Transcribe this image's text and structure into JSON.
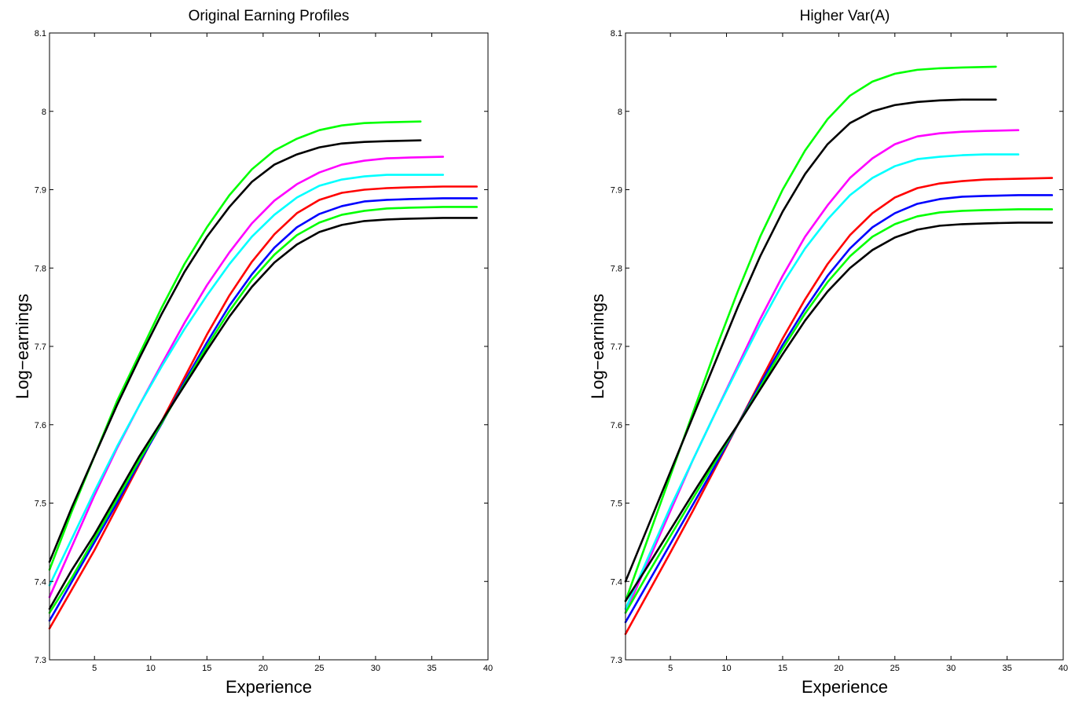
{
  "chart_data": [
    {
      "type": "line",
      "title": "Original Earning Profiles",
      "xlabel": "Experience",
      "ylabel": "Log−earnings",
      "xlim": [
        1,
        40
      ],
      "ylim": [
        7.3,
        8.1
      ],
      "xticks": [
        5,
        10,
        15,
        20,
        25,
        30,
        35,
        40
      ],
      "xtick_labels": [
        "5",
        "10",
        "15",
        "20",
        "25",
        "30",
        "35",
        "40"
      ],
      "yticks": [
        7.3,
        7.4,
        7.5,
        7.6,
        7.7,
        7.8,
        7.9,
        8.0,
        8.1
      ],
      "ytick_labels": [
        "7.3",
        "7.4",
        "7.5",
        "7.6",
        "7.7",
        "7.8",
        "7.9",
        "8",
        "8.1"
      ],
      "grid": false,
      "series": [
        {
          "color": "#00ff00",
          "x": [
            1,
            3,
            5,
            7,
            9,
            11,
            13,
            15,
            17,
            19,
            21,
            23,
            25,
            27,
            29,
            31,
            34
          ],
          "y": [
            7.415,
            7.49,
            7.56,
            7.63,
            7.69,
            7.75,
            7.805,
            7.852,
            7.893,
            7.926,
            7.95,
            7.965,
            7.976,
            7.982,
            7.985,
            7.986,
            7.987
          ]
        },
        {
          "color": "#000000",
          "x": [
            1,
            3,
            5,
            7,
            9,
            11,
            13,
            15,
            17,
            19,
            21,
            23,
            25,
            27,
            29,
            31,
            34
          ],
          "y": [
            7.425,
            7.495,
            7.56,
            7.625,
            7.685,
            7.742,
            7.795,
            7.84,
            7.878,
            7.91,
            7.932,
            7.945,
            7.954,
            7.959,
            7.961,
            7.962,
            7.963
          ]
        },
        {
          "color": "#ff00ff",
          "x": [
            1,
            3,
            5,
            7,
            9,
            11,
            13,
            15,
            17,
            19,
            21,
            23,
            25,
            27,
            29,
            31,
            33,
            36
          ],
          "y": [
            7.38,
            7.445,
            7.51,
            7.57,
            7.625,
            7.678,
            7.73,
            7.778,
            7.82,
            7.857,
            7.886,
            7.907,
            7.922,
            7.932,
            7.937,
            7.94,
            7.941,
            7.942
          ]
        },
        {
          "color": "#00ffff",
          "x": [
            1,
            3,
            5,
            7,
            9,
            11,
            13,
            15,
            17,
            19,
            21,
            23,
            25,
            27,
            29,
            31,
            33,
            36
          ],
          "y": [
            7.395,
            7.455,
            7.515,
            7.572,
            7.625,
            7.675,
            7.722,
            7.765,
            7.805,
            7.84,
            7.868,
            7.89,
            7.905,
            7.913,
            7.917,
            7.919,
            7.919,
            7.919
          ]
        },
        {
          "color": "#ff0000",
          "x": [
            1,
            3,
            5,
            7,
            9,
            11,
            13,
            15,
            17,
            19,
            21,
            23,
            25,
            27,
            29,
            31,
            33,
            36,
            39
          ],
          "y": [
            7.34,
            7.39,
            7.44,
            7.495,
            7.55,
            7.605,
            7.66,
            7.715,
            7.765,
            7.808,
            7.843,
            7.87,
            7.887,
            7.896,
            7.9,
            7.902,
            7.903,
            7.904,
            7.904
          ]
        },
        {
          "color": "#0000ff",
          "x": [
            1,
            3,
            5,
            7,
            9,
            11,
            13,
            15,
            17,
            19,
            21,
            23,
            25,
            27,
            29,
            31,
            33,
            36,
            39
          ],
          "y": [
            7.35,
            7.4,
            7.45,
            7.5,
            7.552,
            7.602,
            7.655,
            7.705,
            7.752,
            7.792,
            7.826,
            7.852,
            7.869,
            7.879,
            7.885,
            7.887,
            7.888,
            7.889,
            7.889
          ]
        },
        {
          "color": "#00ff00",
          "x": [
            1,
            3,
            5,
            7,
            9,
            11,
            13,
            15,
            17,
            19,
            21,
            23,
            25,
            27,
            29,
            31,
            33,
            36,
            39
          ],
          "y": [
            7.36,
            7.405,
            7.455,
            7.505,
            7.555,
            7.603,
            7.652,
            7.7,
            7.745,
            7.785,
            7.817,
            7.842,
            7.858,
            7.868,
            7.873,
            7.876,
            7.877,
            7.878,
            7.878
          ]
        },
        {
          "color": "#000000",
          "x": [
            1,
            3,
            5,
            7,
            9,
            11,
            13,
            15,
            17,
            19,
            21,
            23,
            25,
            27,
            29,
            31,
            33,
            36,
            39
          ],
          "y": [
            7.365,
            7.415,
            7.46,
            7.51,
            7.56,
            7.605,
            7.65,
            7.695,
            7.738,
            7.776,
            7.807,
            7.83,
            7.846,
            7.855,
            7.86,
            7.862,
            7.863,
            7.864,
            7.864
          ]
        }
      ]
    },
    {
      "type": "line",
      "title": "Higher Var(A)",
      "xlabel": "Experience",
      "ylabel": "Log−earnings",
      "xlim": [
        1,
        40
      ],
      "ylim": [
        7.3,
        8.1
      ],
      "xticks": [
        5,
        10,
        15,
        20,
        25,
        30,
        35,
        40
      ],
      "xtick_labels": [
        "5",
        "10",
        "15",
        "20",
        "25",
        "30",
        "35",
        "40"
      ],
      "yticks": [
        7.3,
        7.4,
        7.5,
        7.6,
        7.7,
        7.8,
        7.9,
        8.0,
        8.1
      ],
      "ytick_labels": [
        "7.3",
        "7.4",
        "7.5",
        "7.6",
        "7.7",
        "7.8",
        "7.9",
        "8",
        "8.1"
      ],
      "grid": false,
      "series": [
        {
          "color": "#00ff00",
          "x": [
            1,
            3,
            5,
            7,
            9,
            11,
            13,
            15,
            17,
            19,
            21,
            23,
            25,
            27,
            29,
            31,
            34
          ],
          "y": [
            7.375,
            7.455,
            7.535,
            7.615,
            7.695,
            7.77,
            7.84,
            7.9,
            7.95,
            7.99,
            8.02,
            8.038,
            8.048,
            8.053,
            8.055,
            8.056,
            8.057
          ]
        },
        {
          "color": "#000000",
          "x": [
            1,
            3,
            5,
            7,
            9,
            11,
            13,
            15,
            17,
            19,
            21,
            23,
            25,
            27,
            29,
            31,
            34
          ],
          "y": [
            7.4,
            7.47,
            7.54,
            7.61,
            7.68,
            7.75,
            7.815,
            7.872,
            7.92,
            7.958,
            7.985,
            8.0,
            8.008,
            8.012,
            8.014,
            8.015,
            8.015
          ]
        },
        {
          "color": "#ff00ff",
          "x": [
            1,
            3,
            5,
            7,
            9,
            11,
            13,
            15,
            17,
            19,
            21,
            23,
            25,
            27,
            29,
            31,
            33,
            36
          ],
          "y": [
            7.36,
            7.425,
            7.49,
            7.555,
            7.615,
            7.675,
            7.735,
            7.79,
            7.84,
            7.88,
            7.915,
            7.94,
            7.958,
            7.968,
            7.972,
            7.974,
            7.975,
            7.976
          ]
        },
        {
          "color": "#00ffff",
          "x": [
            1,
            3,
            5,
            7,
            9,
            11,
            13,
            15,
            17,
            19,
            21,
            23,
            25,
            27,
            29,
            31,
            33,
            36
          ],
          "y": [
            7.365,
            7.43,
            7.495,
            7.555,
            7.615,
            7.672,
            7.728,
            7.78,
            7.825,
            7.862,
            7.893,
            7.915,
            7.93,
            7.939,
            7.942,
            7.944,
            7.945,
            7.945
          ]
        },
        {
          "color": "#ff0000",
          "x": [
            1,
            3,
            5,
            7,
            9,
            11,
            13,
            15,
            17,
            19,
            21,
            23,
            25,
            27,
            29,
            31,
            33,
            36,
            39
          ],
          "y": [
            7.333,
            7.385,
            7.437,
            7.49,
            7.545,
            7.6,
            7.655,
            7.71,
            7.76,
            7.805,
            7.842,
            7.87,
            7.89,
            7.902,
            7.908,
            7.911,
            7.913,
            7.914,
            7.915
          ]
        },
        {
          "color": "#0000ff",
          "x": [
            1,
            3,
            5,
            7,
            9,
            11,
            13,
            15,
            17,
            19,
            21,
            23,
            25,
            27,
            29,
            31,
            33,
            36,
            39
          ],
          "y": [
            7.348,
            7.398,
            7.448,
            7.498,
            7.548,
            7.6,
            7.652,
            7.702,
            7.748,
            7.79,
            7.825,
            7.852,
            7.87,
            7.882,
            7.888,
            7.891,
            7.892,
            7.893,
            7.893
          ]
        },
        {
          "color": "#00ff00",
          "x": [
            1,
            3,
            5,
            7,
            9,
            11,
            13,
            15,
            17,
            19,
            21,
            23,
            25,
            27,
            29,
            31,
            33,
            36,
            39
          ],
          "y": [
            7.36,
            7.41,
            7.458,
            7.506,
            7.553,
            7.6,
            7.648,
            7.697,
            7.742,
            7.782,
            7.815,
            7.84,
            7.856,
            7.866,
            7.871,
            7.873,
            7.874,
            7.875,
            7.875
          ]
        },
        {
          "color": "#000000",
          "x": [
            1,
            3,
            5,
            7,
            9,
            11,
            13,
            15,
            17,
            19,
            21,
            23,
            25,
            27,
            29,
            31,
            33,
            36,
            39
          ],
          "y": [
            7.375,
            7.42,
            7.466,
            7.512,
            7.557,
            7.6,
            7.645,
            7.69,
            7.733,
            7.77,
            7.8,
            7.823,
            7.839,
            7.849,
            7.854,
            7.856,
            7.857,
            7.858,
            7.858
          ]
        }
      ]
    }
  ]
}
